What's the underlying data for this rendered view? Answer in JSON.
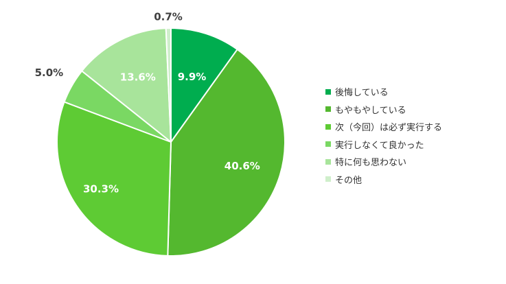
{
  "chart_data": {
    "type": "pie",
    "title": "",
    "categories": [
      "後悔している",
      "もやもやしている",
      "次（今回）は必ず実行する",
      "実行しなくて良かった",
      "特に何も思わない",
      "その他"
    ],
    "values": [
      9.9,
      40.6,
      30.3,
      5.0,
      13.6,
      0.7
    ],
    "value_labels": [
      "9.9%",
      "40.6%",
      "30.3%",
      "5.0%",
      "13.6%",
      "0.7%"
    ],
    "colors": [
      "#00ad4f",
      "#54b82f",
      "#5ecb34",
      "#7ad863",
      "#a8e49b",
      "#cfefcb"
    ],
    "start_angle_deg": 0,
    "direction": "clockwise",
    "legend_position": "right"
  }
}
